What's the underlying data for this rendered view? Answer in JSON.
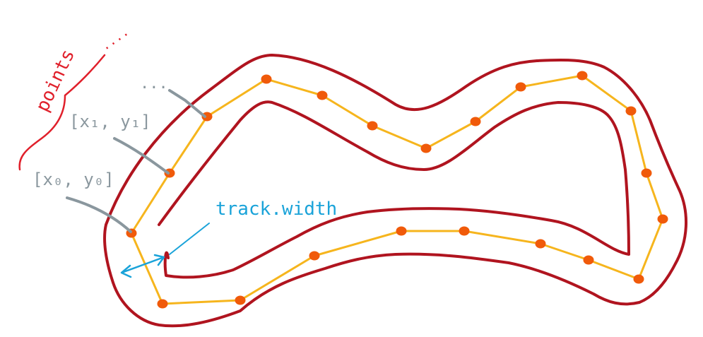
{
  "labels": {
    "points": "points",
    "ellipsis_top": "....",
    "ellipsis_mid": "...",
    "point1": "[x₁, y₁]",
    "point0": "[x₀, y₀]",
    "track_width": "track.width"
  },
  "colors": {
    "border": "#b0141f",
    "centerline": "#f6b51d",
    "waypoint": "#f05a0a",
    "label_gray": "#8a979e",
    "annotation_blue": "#1aa3d9",
    "points_red": "#e0202b"
  }
}
